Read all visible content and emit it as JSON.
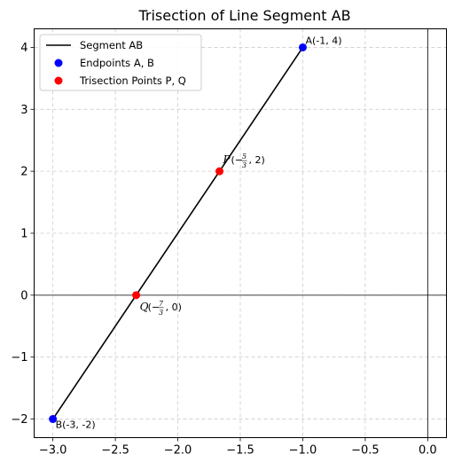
{
  "chart_data": {
    "type": "line",
    "title": "Trisection of Line Segment AB",
    "xlabel": "",
    "ylabel": "",
    "xlim": [
      -3.15,
      0.15
    ],
    "ylim": [
      -2.3,
      4.3
    ],
    "x_ticks": [
      -3.0,
      -2.5,
      -2.0,
      -1.5,
      -1.0,
      -0.5,
      0.0
    ],
    "x_tick_labels": [
      "−3.0",
      "−2.5",
      "−2.0",
      "−1.5",
      "−1.0",
      "−0.5",
      "0.0"
    ],
    "y_ticks": [
      -2,
      -1,
      0,
      1,
      2,
      3,
      4
    ],
    "y_tick_labels": [
      "−2",
      "−1",
      "0",
      "1",
      "2",
      "3",
      "4"
    ],
    "grid": true,
    "axis_lines": true,
    "legend_position": "top-left",
    "series": [
      {
        "name": "Segment AB",
        "kind": "line",
        "color": "#000000",
        "x": [
          -1,
          -3
        ],
        "y": [
          4,
          -2
        ]
      },
      {
        "name": "Endpoints A, B",
        "kind": "scatter",
        "color": "#0000ff",
        "points": [
          {
            "x": -1,
            "y": 4,
            "label": "A(-1, 4)"
          },
          {
            "x": -3,
            "y": -2,
            "label": "B(-3, -2)"
          }
        ]
      },
      {
        "name": "Trisection Points P, Q",
        "kind": "scatter",
        "color": "#ff0000",
        "points": [
          {
            "x": -1.6667,
            "y": 2,
            "label_name": "P",
            "label_sign": "(−",
            "label_num": "5",
            "label_den": "3",
            "label_rest": ", 2)"
          },
          {
            "x": -2.3333,
            "y": 0,
            "label_name": "Q",
            "label_sign": "(−",
            "label_num": "7",
            "label_den": "3",
            "label_rest": ", 0)"
          }
        ]
      }
    ]
  }
}
